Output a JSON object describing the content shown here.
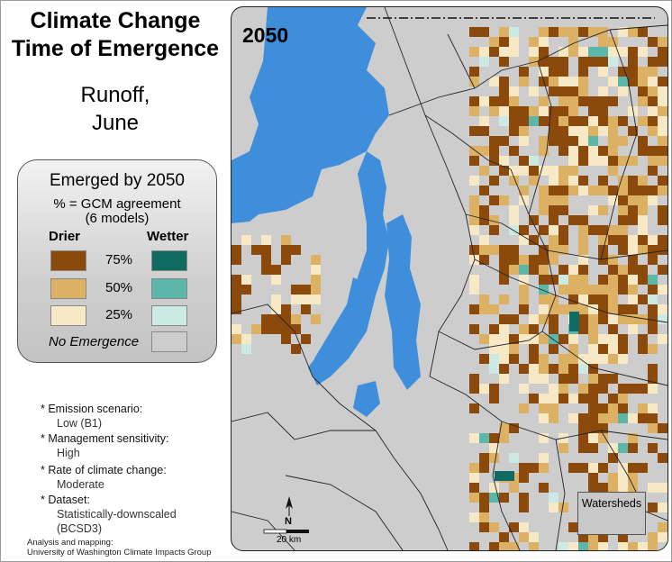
{
  "title_line1": "Climate Change",
  "title_line2": "Time of Emergence",
  "variable": "Runoff,",
  "month": "June",
  "legend": {
    "title": "Emerged by 2050",
    "subtitle1": "% = GCM agreement",
    "subtitle2": "(6 models)",
    "drier_label": "Drier",
    "wetter_label": "Wetter",
    "rows": [
      {
        "pct": "75%",
        "drier_color": "#8b4a0b",
        "wetter_color": "#0f6b61"
      },
      {
        "pct": "50%",
        "drier_color": "#dcb163",
        "wetter_color": "#5cb7aa"
      },
      {
        "pct": "25%",
        "drier_color": "#f7e8c6",
        "wetter_color": "#cbeae4"
      }
    ],
    "no_emergence_label": "No Emergence",
    "no_emergence_color": "#cdcdcd"
  },
  "notes": [
    {
      "label": "* Emission scenario:",
      "value": "Low (B1)"
    },
    {
      "label": "* Management sensitivity:",
      "value": "High"
    },
    {
      "label": "* Rate of climate change:",
      "value": "Moderate"
    },
    {
      "label": "* Dataset:",
      "value": "Statistically-downscaled",
      "value2": "(BCSD3)"
    }
  ],
  "credit_line1": "Analysis and mapping:",
  "credit_line2": "University of Washington Climate Impacts Group",
  "map": {
    "year": "2050",
    "watersheds_label": "Watersheds",
    "scale_label": "20 km",
    "north_label": "N",
    "water_color": "#3f8edc",
    "background_color": "#cdcdcd"
  }
}
